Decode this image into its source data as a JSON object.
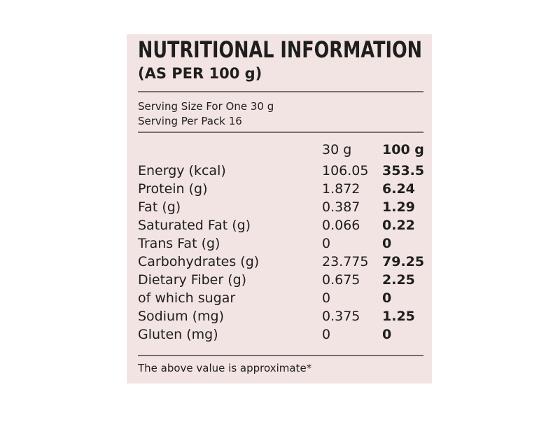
{
  "header": {
    "title": "NUTRITIONAL INFORMATION",
    "subtitle": "(AS PER 100 g)"
  },
  "serving": {
    "size": "Serving Size For One 30 g",
    "per_pack": "Serving Per Pack 16"
  },
  "table": {
    "columns": [
      "30 g",
      "100 g"
    ],
    "rows": [
      [
        "Energy (kcal)",
        "106.05",
        "353.5"
      ],
      [
        "Protein (g)",
        "1.872",
        "6.24"
      ],
      [
        "Fat (g)",
        "0.387",
        "1.29"
      ],
      [
        "Saturated Fat (g)",
        "0.066",
        "0.22"
      ],
      [
        "Trans Fat (g)",
        "0",
        "0"
      ],
      [
        "Carbohydrates (g)",
        "23.775",
        "79.25"
      ],
      [
        "Dietary Fiber (g)",
        "0.675",
        "2.25"
      ],
      [
        "of which sugar",
        "0",
        "0"
      ],
      [
        "Sodium (mg)",
        "0.375",
        "1.25"
      ],
      [
        "Gluten (mg)",
        "0",
        "0"
      ]
    ]
  },
  "footnote": "The above value is approximate*"
}
